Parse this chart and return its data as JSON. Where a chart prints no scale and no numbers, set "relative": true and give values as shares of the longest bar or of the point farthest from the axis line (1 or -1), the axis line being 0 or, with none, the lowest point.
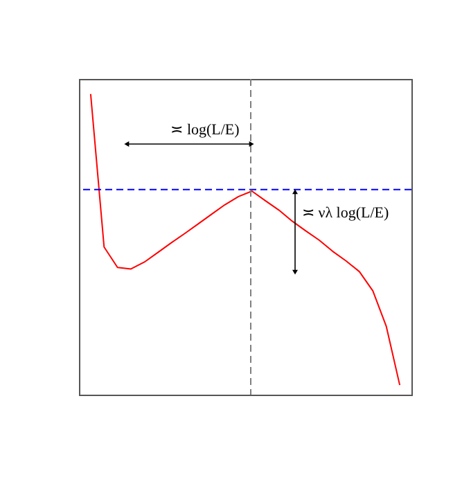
{
  "chart_data": {
    "type": "line",
    "relative": true,
    "categories": [
      null,
      null,
      null,
      null,
      null,
      null,
      null,
      null,
      null,
      null,
      null,
      null,
      null,
      null,
      null,
      null,
      null,
      null,
      null,
      null,
      null,
      null,
      null,
      null
    ],
    "series": [
      {
        "color": "#ff0000",
        "values": [
          1.0,
          0.491,
          0.423,
          0.418,
          0.441,
          0.473,
          0.505,
          0.536,
          0.568,
          0.6,
          0.632,
          0.659,
          0.677,
          0.645,
          0.614,
          0.577,
          0.545,
          0.514,
          0.477,
          0.445,
          0.409,
          0.345,
          0.227,
          0.032
        ]
      }
    ],
    "ref_lines": [
      {
        "axis": "y",
        "value": 0.682,
        "color": "#0000ff",
        "line_style": "dashed"
      }
    ],
    "annotations": [
      "≍ log(L/E)",
      "≍ νλ log(L/E)"
    ],
    "marker": "none",
    "line_style": "solid"
  }
}
